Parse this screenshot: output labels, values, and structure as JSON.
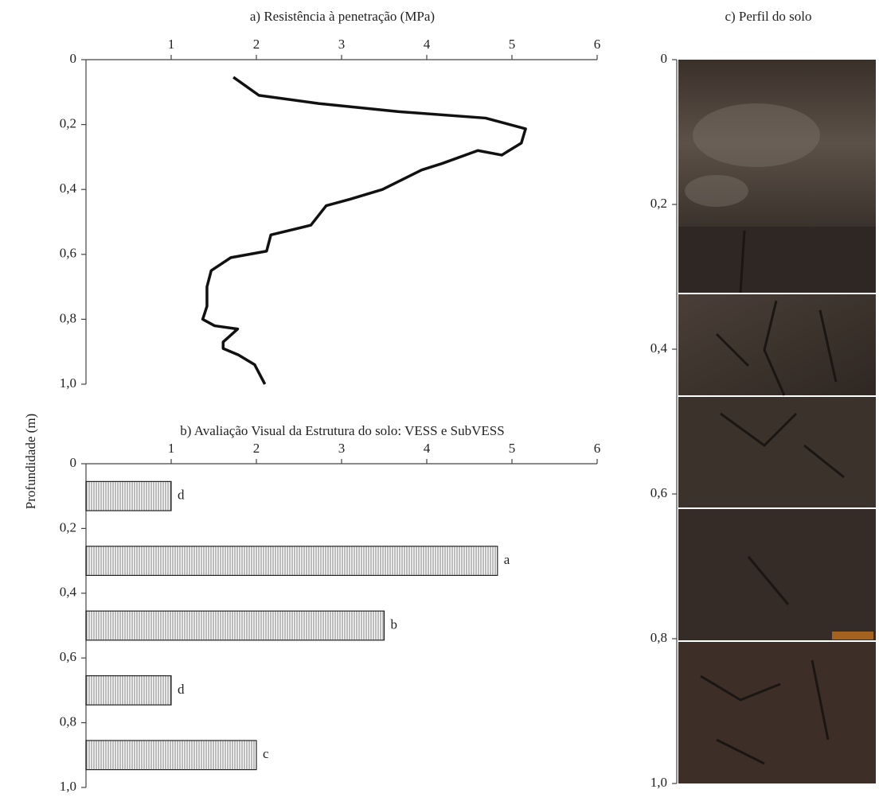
{
  "ylabel": "Profundidade (m)",
  "chart_data": [
    {
      "type": "line",
      "title": "a) Resistência à penetração (MPa)",
      "x": [
        1.73,
        2.03,
        2.73,
        3.66,
        4.69,
        5.16,
        5.11,
        4.88,
        4.6,
        4.18,
        3.94,
        3.48,
        3.1,
        2.82,
        2.73,
        2.64,
        2.17,
        2.12,
        1.7,
        1.47,
        1.42,
        1.42,
        1.37,
        1.51,
        1.78,
        1.61,
        1.61,
        1.79,
        1.98,
        2.1
      ],
      "y": [
        0.054,
        0.11,
        0.135,
        0.16,
        0.18,
        0.213,
        0.257,
        0.294,
        0.28,
        0.32,
        0.34,
        0.4,
        0.43,
        0.45,
        0.48,
        0.51,
        0.54,
        0.59,
        0.61,
        0.65,
        0.7,
        0.76,
        0.8,
        0.82,
        0.83,
        0.87,
        0.89,
        0.91,
        0.94,
        1.0
      ],
      "color": "#111",
      "xlim": [
        0,
        6
      ],
      "xticks": [
        1,
        2,
        3,
        4,
        5,
        6
      ],
      "ylim": [
        0,
        1
      ],
      "yticks": [
        0,
        {
          "value": 0.2,
          "label": "0,2"
        },
        {
          "value": 0.4,
          "label": "0,4"
        },
        {
          "value": 0.6,
          "label": "0,6"
        },
        {
          "value": 0.8,
          "label": "0,8"
        },
        {
          "value": 1,
          "label": "1,0"
        }
      ]
    },
    {
      "type": "hbar",
      "title": "b) Avaliação Visual da Estrutura do solo: VESS e SubVESS",
      "y": [
        0.1,
        0.3,
        0.5,
        0.7,
        0.9
      ],
      "values": [
        1.0,
        4.83,
        3.5,
        1.0,
        2.0
      ],
      "annotations": [
        "d",
        "a",
        "b",
        "d",
        "c"
      ],
      "color": "#888",
      "xlim": [
        0,
        6
      ],
      "xticks": [
        1,
        2,
        3,
        4,
        5,
        6
      ],
      "ylim": [
        0,
        1
      ],
      "yticks": [
        0,
        {
          "value": 0.2,
          "label": "0,2"
        },
        {
          "value": 0.4,
          "label": "0,4"
        },
        {
          "value": 0.6,
          "label": "0,6"
        },
        {
          "value": 0.8,
          "label": "0,8"
        },
        {
          "value": 1,
          "label": "1,0"
        }
      ]
    },
    {
      "type": "image",
      "title": "c) Perfil do solo",
      "ylim": [
        0,
        1
      ],
      "yticks": [
        0,
        {
          "value": 0.2,
          "label": "0,2"
        },
        {
          "value": 0.4,
          "label": "0,4"
        },
        {
          "value": 0.6,
          "label": "0,6"
        },
        {
          "value": 0.8,
          "label": "0,8"
        },
        {
          "value": 1,
          "label": "1,0"
        }
      ]
    }
  ]
}
